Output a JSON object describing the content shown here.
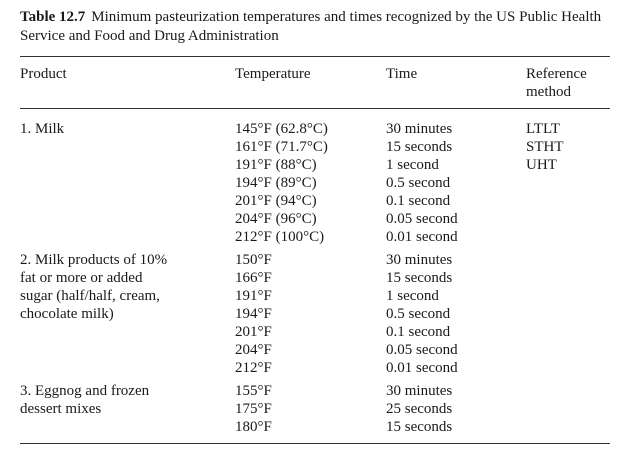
{
  "caption": {
    "label": "Table 12.7",
    "text": "Minimum pasteurization temperatures and times recognized by the US Public Health Service and Food and Drug Administration"
  },
  "headers": {
    "product": "Product",
    "temperature": "Temperature",
    "time": "Time",
    "reference": [
      "Reference",
      "method"
    ]
  },
  "groups": [
    {
      "product": [
        "1. Milk"
      ],
      "temperatures": [
        "145°F (62.8°C)",
        "161°F (71.7°C)",
        "191°F (88°C)",
        "194°F (89°C)",
        "201°F (94°C)",
        "204°F (96°C)",
        "212°F (100°C)"
      ],
      "times": [
        "30 minutes",
        "15 seconds",
        "1 second",
        "0.5 second",
        "0.1 second",
        "0.05 second",
        "0.01 second"
      ],
      "methods": [
        "LTLT",
        "STHT",
        "UHT"
      ]
    },
    {
      "product": [
        "2. Milk products of 10%",
        "fat or more or added",
        "sugar (half/half, cream,",
        "chocolate milk)"
      ],
      "temperatures": [
        "150°F",
        "166°F",
        "191°F",
        "194°F",
        "201°F",
        "204°F",
        "212°F"
      ],
      "times": [
        "30 minutes",
        "15 seconds",
        "1 second",
        "0.5 second",
        "0.1 second",
        "0.05 second",
        "0.01 second"
      ],
      "methods": []
    },
    {
      "product": [
        "3. Eggnog and frozen",
        "dessert mixes"
      ],
      "temperatures": [
        "155°F",
        "175°F",
        "180°F"
      ],
      "times": [
        "30 minutes",
        "25 seconds",
        "15 seconds"
      ],
      "methods": []
    }
  ]
}
